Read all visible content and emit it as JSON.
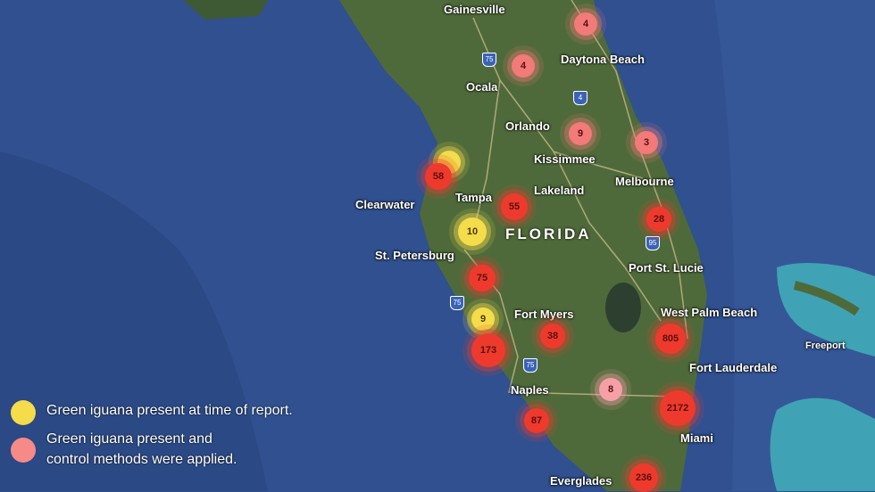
{
  "map": {
    "state_label": "FLORIDA",
    "cities": [
      "Gainesville",
      "Daytona Beach",
      "Ocala",
      "Orlando",
      "Kissimmee",
      "Melbourne",
      "Clearwater",
      "Tampa",
      "Lakeland",
      "St. Petersburg",
      "Port St. Lucie",
      "West Palm Beach",
      "Fort Myers",
      "Naples",
      "Fort Lauderdale",
      "Miami",
      "Everglades",
      "Freeport"
    ],
    "highway_shields": [
      "75",
      "4",
      "95",
      "75",
      "75"
    ],
    "colors": {
      "ocean": "#2f4f8f",
      "land": "#4f6a3a",
      "shallow": "#3fa3b5",
      "present": "#f4dc4a",
      "controlled": "#f27a78",
      "large_cluster": "#ee3a2c"
    }
  },
  "markers": [
    {
      "value": "4",
      "type": "pink"
    },
    {
      "value": "4",
      "type": "pink"
    },
    {
      "value": "9",
      "type": "pink"
    },
    {
      "value": "3",
      "type": "pink"
    },
    {
      "value": "",
      "type": "yellow"
    },
    {
      "value": "58",
      "type": "red"
    },
    {
      "value": "55",
      "type": "red"
    },
    {
      "value": "10",
      "type": "yellow"
    },
    {
      "value": "28",
      "type": "red"
    },
    {
      "value": "75",
      "type": "red"
    },
    {
      "value": "9",
      "type": "yellow"
    },
    {
      "value": "173",
      "type": "red"
    },
    {
      "value": "38",
      "type": "red"
    },
    {
      "value": "805",
      "type": "red"
    },
    {
      "value": "8",
      "type": "lightpink"
    },
    {
      "value": "2172",
      "type": "red"
    },
    {
      "value": "87",
      "type": "red"
    },
    {
      "value": "236",
      "type": "red"
    }
  ],
  "legend": {
    "present": "Green iguana present at time of report.",
    "controlled_line1": "Green iguana present and",
    "controlled_line2": "control methods were applied."
  }
}
